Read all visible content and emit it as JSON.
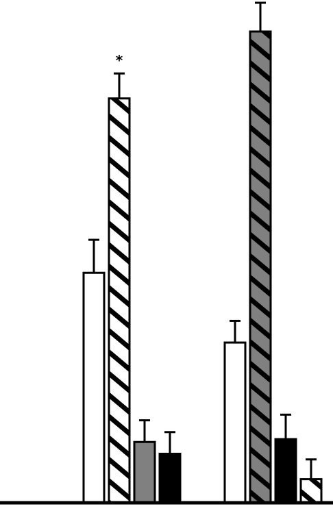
{
  "chart_data": {
    "type": "bar",
    "title": "",
    "xlabel": "",
    "ylabel": "",
    "ylim": [
      0,
      100
    ],
    "grid": false,
    "legend": "none",
    "groups": [
      {
        "bars": [
          {
            "value": 48.8,
            "error": 7,
            "fill": "white",
            "hatch": "none",
            "annotation": ""
          },
          {
            "value": 85.8,
            "error": 5.3,
            "fill": "white",
            "hatch": "diag",
            "annotation": "*"
          },
          {
            "value": 12.9,
            "error": 4.6,
            "fill": "#808080",
            "hatch": "none",
            "annotation": ""
          },
          {
            "value": 10.4,
            "error": 4.6,
            "fill": "#000000",
            "hatch": "none",
            "annotation": ""
          }
        ]
      },
      {
        "bars": [
          {
            "value": 34.0,
            "error": 4.6,
            "fill": "white",
            "hatch": "none",
            "annotation": ""
          },
          {
            "value": 100,
            "error": 6.1,
            "fill": "#808080",
            "hatch": "diag",
            "annotation": ""
          },
          {
            "value": 13.5,
            "error": 5.2,
            "fill": "#000000",
            "hatch": "none",
            "annotation": ""
          },
          {
            "value": 5.0,
            "error": 4.2,
            "fill": "white",
            "hatch": "diag",
            "annotation": ""
          }
        ]
      }
    ],
    "colors": {
      "stroke": "#000000",
      "gray": "#808080",
      "black": "#000000",
      "white": "#ffffff"
    }
  }
}
